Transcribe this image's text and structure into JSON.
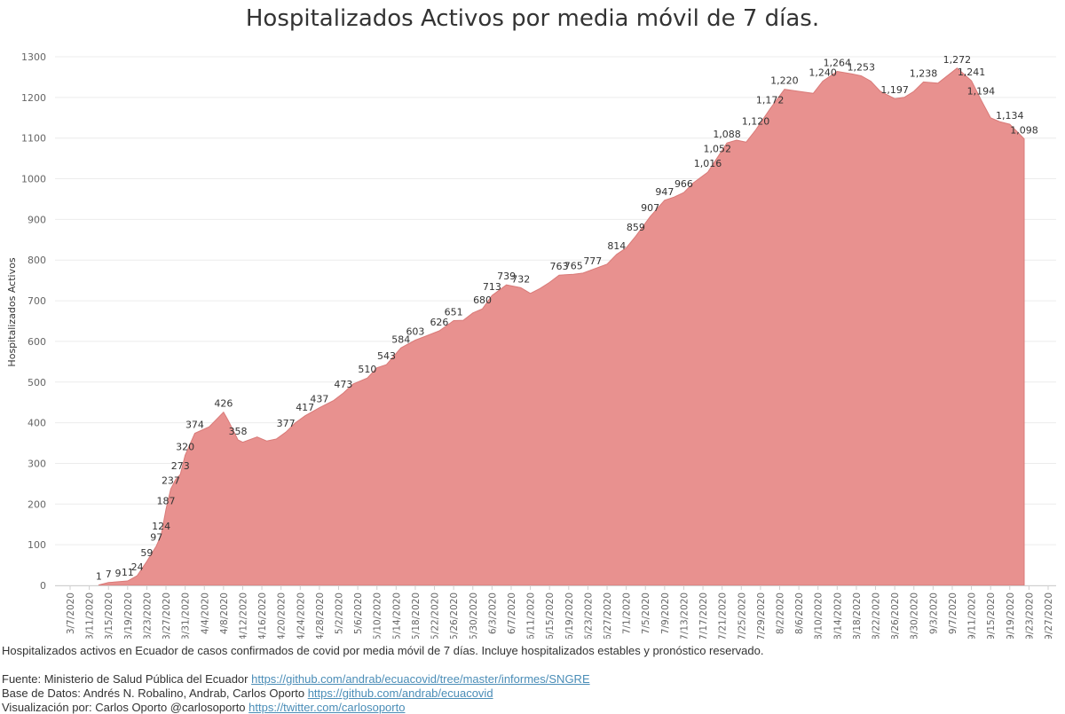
{
  "chart_data": {
    "type": "area",
    "title": "Hospitalizados Activos por media móvil de 7 días.",
    "ylabel": "Hospitalizados Activos",
    "xlabel": "",
    "ylim": [
      0,
      1300
    ],
    "yticks": [
      "0",
      "100",
      "200",
      "300",
      "400",
      "500",
      "600",
      "700",
      "800",
      "900",
      "1000",
      "1100",
      "1200",
      "1300"
    ],
    "x_start": "2020-03-07",
    "x_end": "2020-09-27",
    "xticks": [
      "3/7/2020",
      "3/11/2020",
      "3/15/2020",
      "3/19/2020",
      "3/23/2020",
      "3/27/2020",
      "3/31/2020",
      "4/4/2020",
      "4/8/2020",
      "4/12/2020",
      "4/16/2020",
      "4/20/2020",
      "4/24/2020",
      "4/28/2020",
      "5/2/2020",
      "5/6/2020",
      "5/10/2020",
      "5/14/2020",
      "5/18/2020",
      "5/22/2020",
      "5/26/2020",
      "5/30/2020",
      "6/3/2020",
      "6/7/2020",
      "6/11/2020",
      "6/15/2020",
      "6/19/2020",
      "6/23/2020",
      "6/27/2020",
      "7/1/2020",
      "7/5/2020",
      "7/9/2020",
      "7/13/2020",
      "7/17/2020",
      "7/21/2020",
      "7/25/2020",
      "7/29/2020",
      "8/2/2020",
      "8/6/2020",
      "8/10/2020",
      "8/14/2020",
      "8/18/2020",
      "8/22/2020",
      "8/26/2020",
      "8/30/2020",
      "9/3/2020",
      "9/7/2020",
      "9/11/2020",
      "9/15/2020",
      "9/19/2020",
      "9/23/2020",
      "9/27/2020"
    ],
    "color": "#e8918f",
    "stroke": "#d97a78",
    "series": [
      {
        "points": [
          [
            "2020-03-13",
            1
          ],
          [
            "2020-03-15",
            7
          ],
          [
            "2020-03-17",
            9
          ],
          [
            "2020-03-19",
            11
          ],
          [
            "2020-03-21",
            24
          ],
          [
            "2020-03-23",
            59
          ],
          [
            "2020-03-25",
            97
          ],
          [
            "2020-03-26",
            124
          ],
          [
            "2020-03-27",
            187
          ],
          [
            "2020-03-28",
            237
          ],
          [
            "2020-03-29",
            260
          ],
          [
            "2020-03-30",
            273
          ],
          [
            "2020-03-31",
            320
          ],
          [
            "2020-04-02",
            374
          ],
          [
            "2020-04-05",
            390
          ],
          [
            "2020-04-08",
            426
          ],
          [
            "2020-04-09",
            405
          ],
          [
            "2020-04-11",
            358
          ],
          [
            "2020-04-12",
            352
          ],
          [
            "2020-04-15",
            365
          ],
          [
            "2020-04-17",
            355
          ],
          [
            "2020-04-19",
            360
          ],
          [
            "2020-04-21",
            377
          ],
          [
            "2020-04-23",
            400
          ],
          [
            "2020-04-25",
            417
          ],
          [
            "2020-04-28",
            437
          ],
          [
            "2020-05-01",
            455
          ],
          [
            "2020-05-03",
            473
          ],
          [
            "2020-05-05",
            495
          ],
          [
            "2020-05-08",
            510
          ],
          [
            "2020-05-10",
            535
          ],
          [
            "2020-05-12",
            543
          ],
          [
            "2020-05-15",
            584
          ],
          [
            "2020-05-18",
            603
          ],
          [
            "2020-05-20",
            612
          ],
          [
            "2020-05-23",
            626
          ],
          [
            "2020-05-26",
            651
          ],
          [
            "2020-05-28",
            652
          ],
          [
            "2020-05-30",
            670
          ],
          [
            "2020-06-01",
            680
          ],
          [
            "2020-06-03",
            713
          ],
          [
            "2020-06-06",
            739
          ],
          [
            "2020-06-09",
            732
          ],
          [
            "2020-06-11",
            718
          ],
          [
            "2020-06-13",
            730
          ],
          [
            "2020-06-15",
            745
          ],
          [
            "2020-06-17",
            763
          ],
          [
            "2020-06-20",
            765
          ],
          [
            "2020-06-22",
            768
          ],
          [
            "2020-06-24",
            777
          ],
          [
            "2020-06-27",
            790
          ],
          [
            "2020-06-29",
            814
          ],
          [
            "2020-07-01",
            830
          ],
          [
            "2020-07-03",
            859
          ],
          [
            "2020-07-06",
            907
          ],
          [
            "2020-07-09",
            947
          ],
          [
            "2020-07-11",
            955
          ],
          [
            "2020-07-13",
            966
          ],
          [
            "2020-07-15",
            990
          ],
          [
            "2020-07-18",
            1016
          ],
          [
            "2020-07-20",
            1052
          ],
          [
            "2020-07-22",
            1088
          ],
          [
            "2020-07-24",
            1095
          ],
          [
            "2020-07-26",
            1090
          ],
          [
            "2020-07-28",
            1120
          ],
          [
            "2020-07-31",
            1172
          ],
          [
            "2020-08-03",
            1220
          ],
          [
            "2020-08-06",
            1215
          ],
          [
            "2020-08-09",
            1210
          ],
          [
            "2020-08-11",
            1240
          ],
          [
            "2020-08-14",
            1264
          ],
          [
            "2020-08-17",
            1258
          ],
          [
            "2020-08-19",
            1253
          ],
          [
            "2020-08-21",
            1240
          ],
          [
            "2020-08-23",
            1215
          ],
          [
            "2020-08-26",
            1197
          ],
          [
            "2020-08-28",
            1200
          ],
          [
            "2020-08-30",
            1215
          ],
          [
            "2020-09-01",
            1238
          ],
          [
            "2020-09-04",
            1235
          ],
          [
            "2020-09-08",
            1272
          ],
          [
            "2020-09-11",
            1241
          ],
          [
            "2020-09-13",
            1194
          ],
          [
            "2020-09-15",
            1150
          ],
          [
            "2020-09-17",
            1140
          ],
          [
            "2020-09-19",
            1134
          ],
          [
            "2020-09-22",
            1098
          ]
        ]
      }
    ],
    "data_labels": [
      [
        "2020-03-13",
        1
      ],
      [
        "2020-03-15",
        7
      ],
      [
        "2020-03-17",
        9
      ],
      [
        "2020-03-19",
        11
      ],
      [
        "2020-03-21",
        24
      ],
      [
        "2020-03-23",
        59
      ],
      [
        "2020-03-25",
        97
      ],
      [
        "2020-03-26",
        124
      ],
      [
        "2020-03-27",
        187
      ],
      [
        "2020-03-28",
        237
      ],
      [
        "2020-03-30",
        273
      ],
      [
        "2020-03-31",
        320
      ],
      [
        "2020-04-02",
        374
      ],
      [
        "2020-04-08",
        426
      ],
      [
        "2020-04-11",
        358
      ],
      [
        "2020-04-21",
        377
      ],
      [
        "2020-04-25",
        417
      ],
      [
        "2020-04-28",
        437
      ],
      [
        "2020-05-03",
        473
      ],
      [
        "2020-05-08",
        510
      ],
      [
        "2020-05-12",
        543
      ],
      [
        "2020-05-15",
        584
      ],
      [
        "2020-05-18",
        603
      ],
      [
        "2020-05-23",
        626
      ],
      [
        "2020-05-26",
        651
      ],
      [
        "2020-06-01",
        680
      ],
      [
        "2020-06-03",
        713
      ],
      [
        "2020-06-06",
        739
      ],
      [
        "2020-06-09",
        732
      ],
      [
        "2020-06-17",
        763
      ],
      [
        "2020-06-20",
        765
      ],
      [
        "2020-06-24",
        777
      ],
      [
        "2020-06-29",
        814
      ],
      [
        "2020-07-03",
        859
      ],
      [
        "2020-07-06",
        907
      ],
      [
        "2020-07-09",
        947
      ],
      [
        "2020-07-13",
        966
      ],
      [
        "2020-07-18",
        1016
      ],
      [
        "2020-07-20",
        1052
      ],
      [
        "2020-07-22",
        1088
      ],
      [
        "2020-07-28",
        1120
      ],
      [
        "2020-07-31",
        1172
      ],
      [
        "2020-08-03",
        1220
      ],
      [
        "2020-08-11",
        1240
      ],
      [
        "2020-08-14",
        1264
      ],
      [
        "2020-08-19",
        1253
      ],
      [
        "2020-08-26",
        1197
      ],
      [
        "2020-09-01",
        1238
      ],
      [
        "2020-09-08",
        1272
      ],
      [
        "2020-09-11",
        1241
      ],
      [
        "2020-09-13",
        1194
      ],
      [
        "2020-09-19",
        1134
      ],
      [
        "2020-09-22",
        1098
      ]
    ],
    "grid": true
  },
  "footer": {
    "description": "Hospitalizados activos en Ecuador de casos confirmados de covid por media móvil de 7 días. Incluye hospitalizados estables y pronóstico reservado.",
    "source_label": "Fuente: Ministerio de Salud Pública del Ecuador ",
    "source_link": "https://github.com/andrab/ecuacovid/tree/master/informes/SNGRE",
    "database_label": "Base de Datos: Andrés N. Robalino, Andrab, Carlos Oporto ",
    "database_link": "https://github.com/andrab/ecuacovid",
    "viz_label": "Visualización por: Carlos Oporto @carlosoporto ",
    "viz_link": "https://twitter.com/carlosoporto"
  }
}
